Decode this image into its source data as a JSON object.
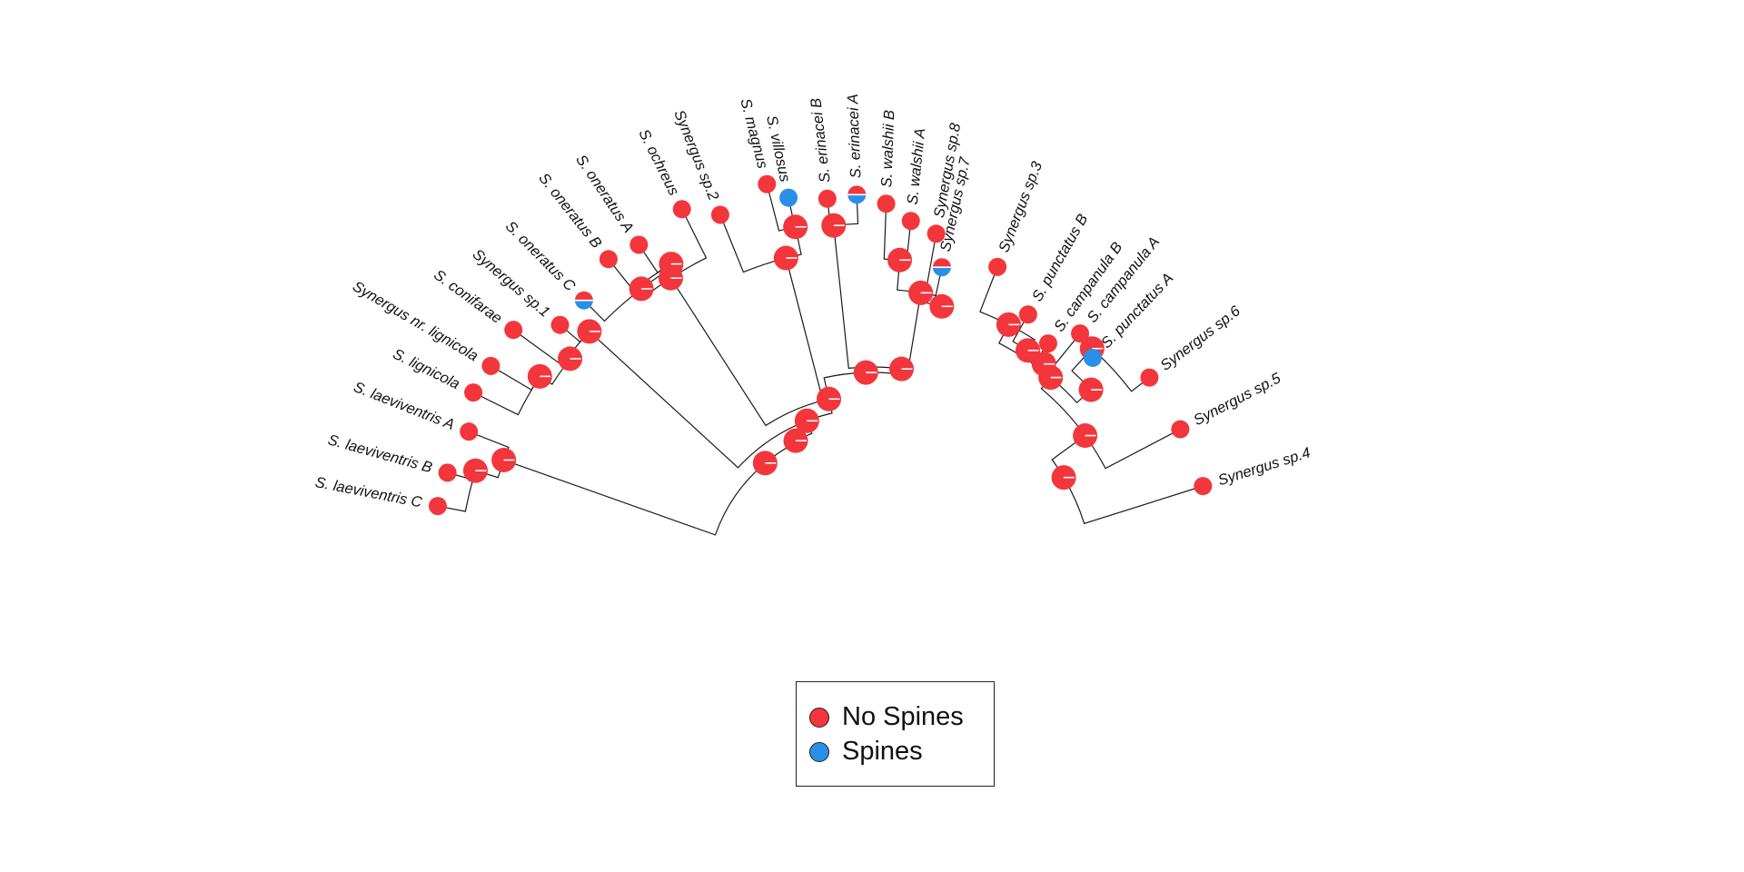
{
  "figure": {
    "colors": {
      "no_spines": "#f2363b",
      "spines": "#2a8fe8",
      "branch": "#1a1a1a"
    },
    "legend": {
      "items": [
        {
          "label": "No Spines",
          "color": "#f2363b"
        },
        {
          "label": "Spines",
          "color": "#2a8fe8"
        }
      ]
    },
    "taxa": [
      "Synergus sp.4",
      "Synergus sp.5",
      "Synergus sp.6",
      "S. punctatus A",
      "S. campanula A",
      "S. campanula B",
      "S. punctatus B",
      "Synergus sp.3",
      "Synergus sp.7",
      "Synergus sp.8",
      "S. walshii A",
      "S. walshii B",
      "S. erinacei A",
      "S. erinacei B",
      "S. villosus",
      "S. magnus",
      "Synergus sp.2",
      "S. ochreus",
      "S. oneratus A",
      "S. oneratus B",
      "S. oneratus C",
      "Synergus sp.1",
      "S. conifarae",
      "Synergus nr. lignicola",
      "S. lignicola",
      "S. laeviventris A",
      "S. laeviventris B",
      "S. laeviventris C"
    ],
    "tip_states_spines_fraction": [
      0,
      0,
      0,
      1,
      0,
      0,
      0,
      0,
      0.5,
      0,
      0,
      0,
      0.5,
      0,
      1,
      0,
      0,
      0,
      0,
      0,
      0.5,
      0,
      0,
      0,
      0,
      0,
      0,
      0
    ]
  }
}
